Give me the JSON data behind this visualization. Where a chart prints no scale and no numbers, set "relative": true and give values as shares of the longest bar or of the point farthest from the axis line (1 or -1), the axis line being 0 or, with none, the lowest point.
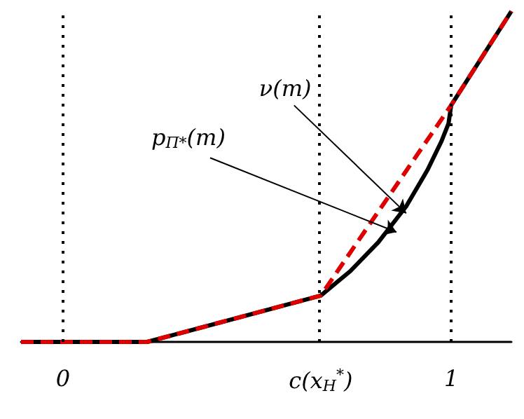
{
  "chart_data": {
    "type": "line",
    "relative": true,
    "xlim": [
      -0.108,
      1.155
    ],
    "xticks": [
      0,
      {
        "value": 0.664,
        "label": "c(x$_{H}$$^{*}$)"
      },
      1
    ],
    "grid": false,
    "marker": "none",
    "series": [
      {
        "color": "#000000",
        "line_style": "solid",
        "x": [
          -0.108,
          0.217,
          0.664,
          0.74,
          0.812,
          0.884,
          0.939,
          0.975,
          0.993,
          1,
          1.155
        ],
        "values": [
          0,
          0,
          0.14,
          0.214,
          0.301,
          0.41,
          0.52,
          0.607,
          0.66,
          0.716,
          1
        ]
      },
      {
        "color": "#dd0000",
        "line_style": "dashed",
        "x": [
          -0.108,
          0.217,
          0.664,
          1,
          1.155
        ],
        "values": [
          0,
          0,
          0.14,
          0.716,
          1
        ]
      }
    ],
    "ref_lines": [
      {
        "axis": "x",
        "value": 0,
        "color": "#000000",
        "line_style": "dotted"
      },
      {
        "axis": "x",
        "value": 0.664,
        "color": "#000000",
        "line_style": "dotted"
      },
      {
        "axis": "x",
        "value": 1,
        "color": "#000000",
        "line_style": "dotted"
      }
    ],
    "annotations": [
      {
        "text": "ν(m)",
        "x": 0.884,
        "y": 0.389
      },
      {
        "text": "p$_{Π*}$(m)",
        "x": 0.859,
        "y": 0.332
      }
    ]
  }
}
